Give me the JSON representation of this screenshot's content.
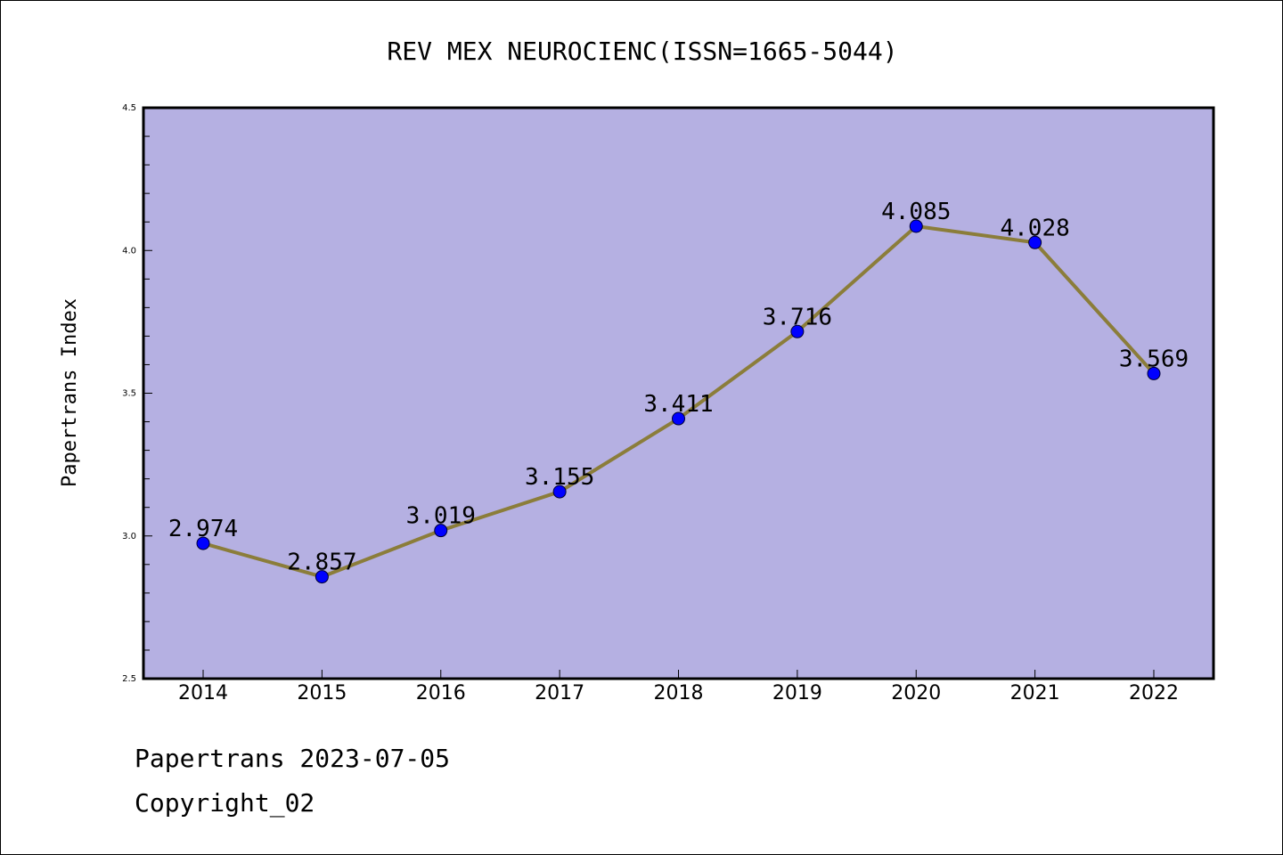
{
  "colors": {
    "plot_background": "#b5b0e2",
    "line": "#8b7d3a",
    "marker": "#0000ff",
    "axis": "#000000"
  },
  "footer": {
    "line1": "Papertrans 2023-07-05",
    "line2": "Copyright_02"
  },
  "chart_data": {
    "type": "line",
    "title": "REV MEX NEUROCIENC(ISSN=1665-5044)",
    "xlabel": "",
    "ylabel": "Papertrans Index",
    "categories": [
      "2014",
      "2015",
      "2016",
      "2017",
      "2018",
      "2019",
      "2020",
      "2021",
      "2022"
    ],
    "series": [
      {
        "values": [
          2.974,
          2.857,
          3.019,
          3.155,
          3.411,
          3.716,
          4.085,
          4.028,
          3.569
        ],
        "data_labels": [
          "2.974",
          "2.857",
          "3.019",
          "3.155",
          "3.411",
          "3.716",
          "4.085",
          "4.028",
          "3.569"
        ]
      }
    ],
    "ylim": [
      2.5,
      4.5
    ],
    "yticks": [
      "2.5",
      "3.0",
      "3.5",
      "4.0",
      "4.5"
    ],
    "grid": false,
    "legend": "none"
  }
}
